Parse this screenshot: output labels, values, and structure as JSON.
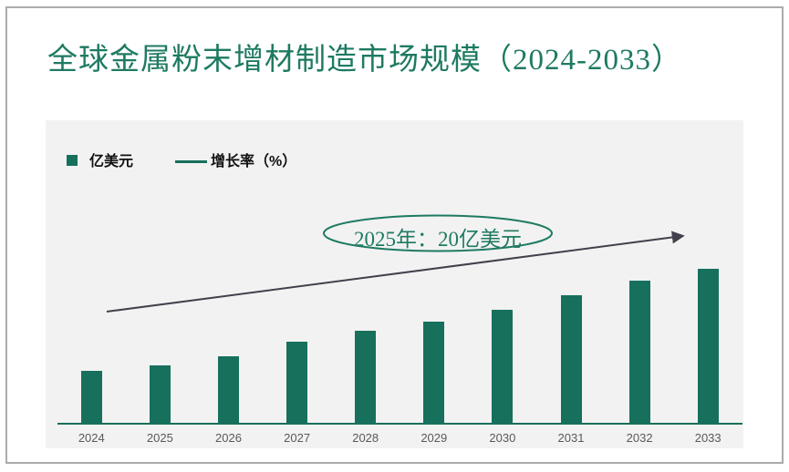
{
  "title": "全球金属粉末增材制造市场规模（2024-2033）",
  "legend": {
    "bar_label": "亿美元",
    "line_label": "增长率（%）"
  },
  "annotation": "2025年：20亿美元",
  "chart_data": {
    "type": "bar",
    "title": "全球金属粉末增材制造市场规模（2024-2033）",
    "categories": [
      "2024",
      "2025",
      "2026",
      "2027",
      "2028",
      "2029",
      "2030",
      "2031",
      "2032",
      "2033"
    ],
    "series": [
      {
        "name": "亿美元",
        "type": "bar",
        "values": [
          18,
          20,
          23,
          28,
          32,
          35,
          39,
          44,
          49,
          53
        ]
      }
    ],
    "trend": {
      "name": "增长率（%）",
      "representation": "straight-upward-arrow",
      "values_labeled": false
    },
    "annotations": [
      {
        "text": "2025年：20亿美元",
        "target_category": "2025",
        "shape": "ellipse"
      }
    ],
    "xlabel": "",
    "ylabel": "亿美元",
    "ylim": [
      0,
      60
    ],
    "grid": false,
    "y_axis_shown": false,
    "legend_position": "top-left"
  },
  "colors": {
    "bar": "#17705c",
    "title_text": "#1e7a62",
    "annotation_text": "#1e7a62",
    "ellipse_stroke": "#1e7a62",
    "trend_line": "#41414d",
    "axis_line": "#17705c",
    "panel_bg": "#f2f2f2",
    "page_bg": "#ffffff",
    "frame_border": "#ababab",
    "x_label": "#595959",
    "legend_text": "#111111"
  }
}
